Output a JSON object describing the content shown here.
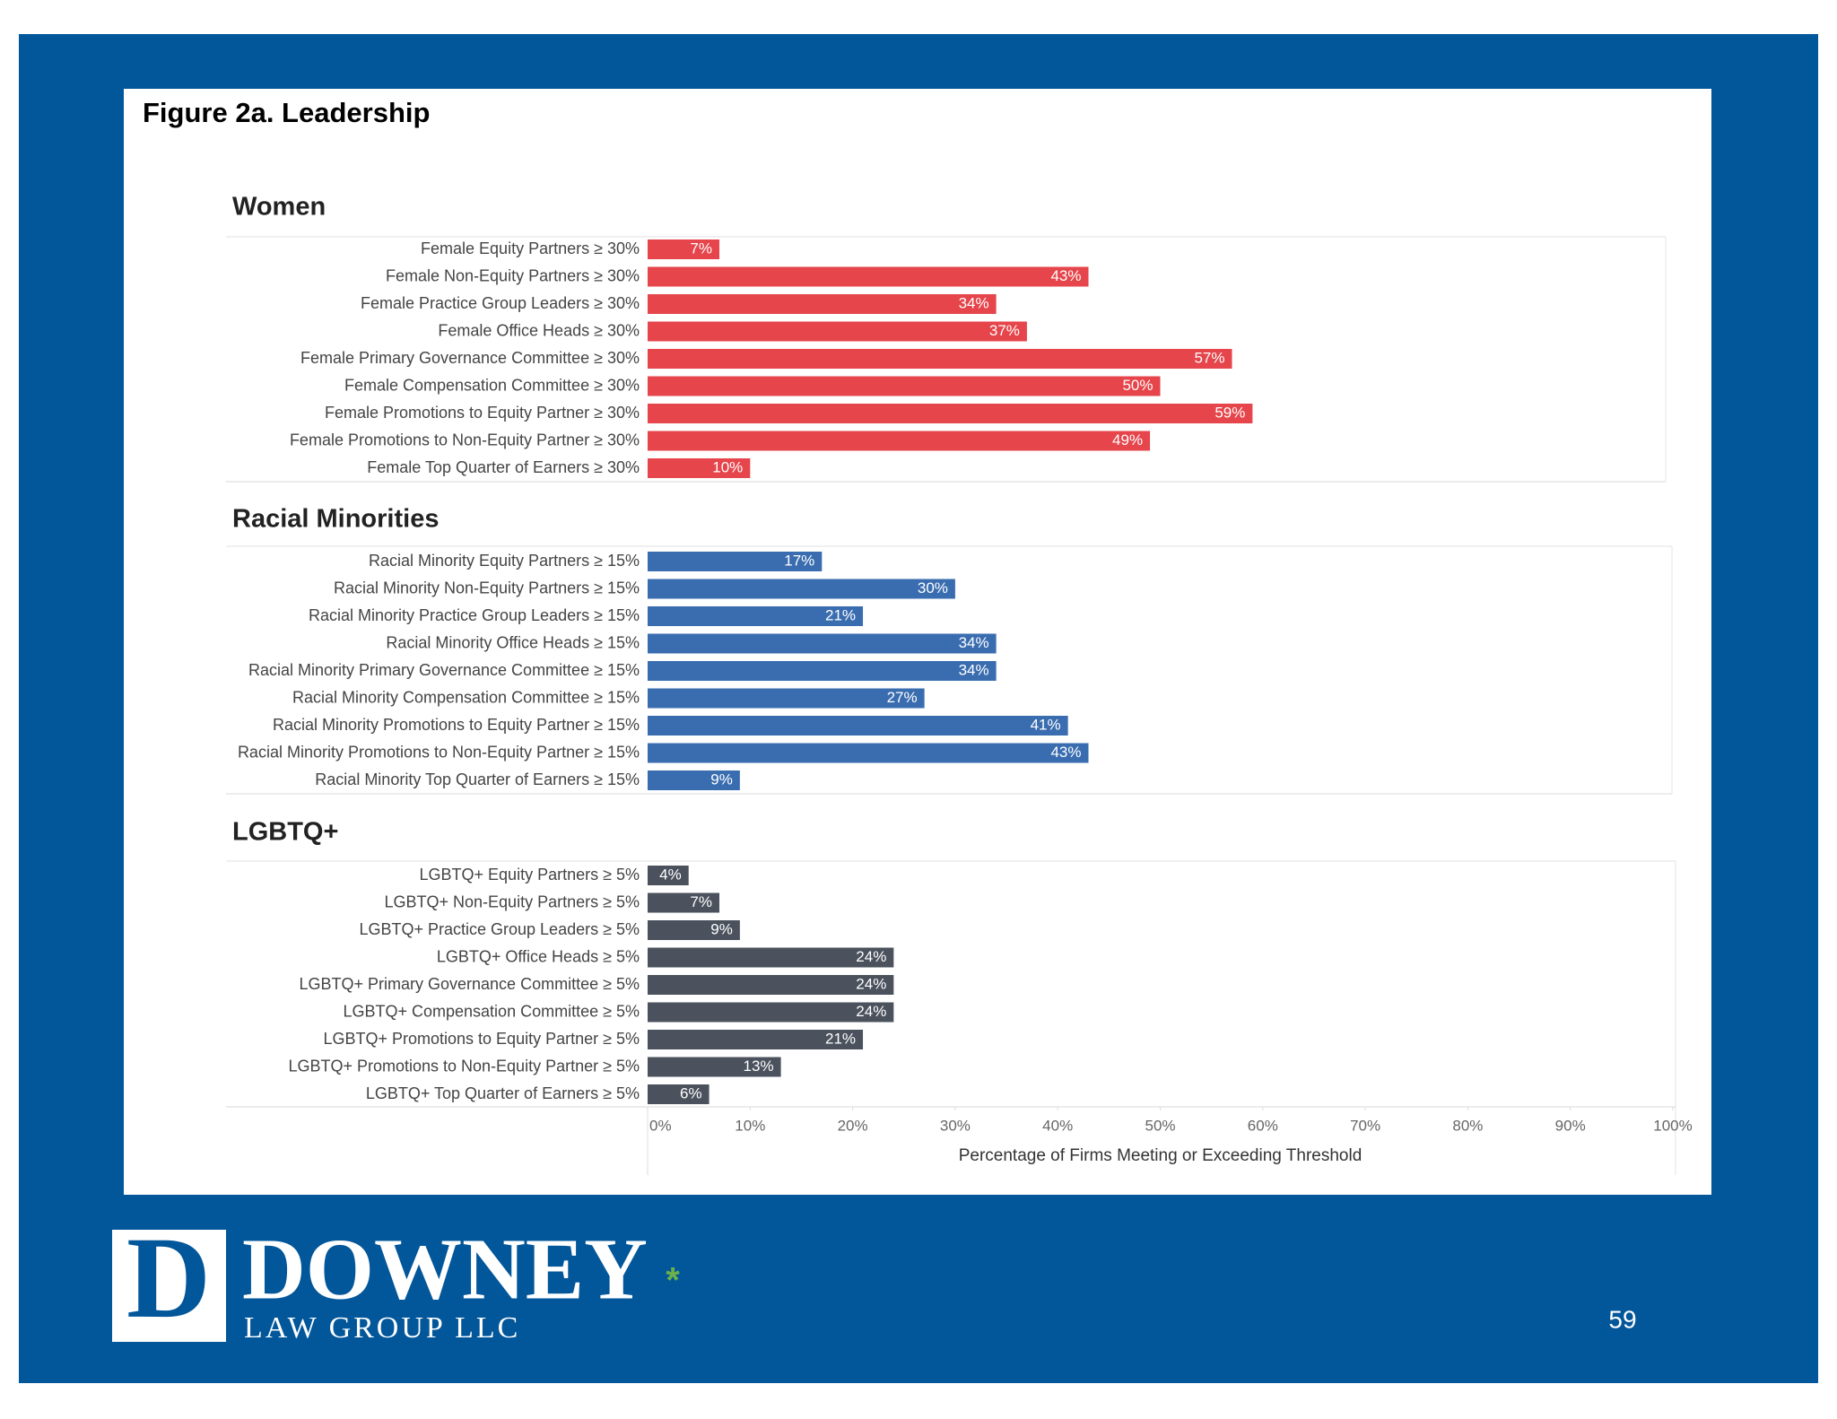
{
  "title": "Figure 2a. Leadership",
  "chart_data": [
    {
      "type": "bar",
      "orientation": "horizontal",
      "title": "Women",
      "color": "#e5454b",
      "categories": [
        "Female Equity Partners ≥ 30%",
        "Female Non-Equity Partners ≥ 30%",
        "Female Practice Group Leaders ≥ 30%",
        "Female Office Heads ≥ 30%",
        "Female Primary Governance Committee ≥ 30%",
        "Female Compensation Committee ≥ 30%",
        "Female Promotions to Equity Partner ≥ 30%",
        "Female Promotions to Non-Equity Partner ≥ 30%",
        "Female Top Quarter of Earners ≥ 30%"
      ],
      "values": [
        7,
        43,
        34,
        37,
        57,
        50,
        59,
        49,
        10
      ],
      "value_labels": [
        "7%",
        "43%",
        "34%",
        "37%",
        "57%",
        "50%",
        "59%",
        "49%",
        "10%"
      ],
      "xlim": [
        0,
        100
      ]
    },
    {
      "type": "bar",
      "orientation": "horizontal",
      "title": "Racial Minorities",
      "color": "#3a6db0",
      "categories": [
        "Racial Minority Equity Partners ≥ 15%",
        "Racial Minority Non-Equity Partners ≥ 15%",
        "Racial Minority Practice Group Leaders ≥ 15%",
        "Racial Minority Office Heads ≥ 15%",
        "Racial Minority Primary Governance Committee ≥ 15%",
        "Racial Minority Compensation Committee ≥ 15%",
        "Racial Minority Promotions to Equity Partner ≥ 15%",
        "Racial Minority Promotions to Non-Equity Partner ≥ 15%",
        "Racial Minority Top Quarter of Earners ≥ 15%"
      ],
      "values": [
        17,
        30,
        21,
        34,
        34,
        27,
        41,
        43,
        9
      ],
      "value_labels": [
        "17%",
        "30%",
        "21%",
        "34%",
        "34%",
        "27%",
        "41%",
        "43%",
        "9%"
      ],
      "xlim": [
        0,
        100
      ]
    },
    {
      "type": "bar",
      "orientation": "horizontal",
      "title": "LGBTQ+",
      "color": "#4b525d",
      "categories": [
        "LGBTQ+ Equity Partners ≥ 5%",
        "LGBTQ+ Non-Equity Partners ≥ 5%",
        "LGBTQ+ Practice Group Leaders ≥ 5%",
        "LGBTQ+ Office Heads ≥ 5%",
        "LGBTQ+ Primary Governance Committee ≥ 5%",
        "LGBTQ+ Compensation Committee ≥ 5%",
        "LGBTQ+ Promotions to Equity Partner ≥ 5%",
        "LGBTQ+ Promotions to Non-Equity Partner ≥ 5%",
        "LGBTQ+ Top Quarter of Earners ≥ 5%"
      ],
      "values": [
        4,
        7,
        9,
        24,
        24,
        24,
        21,
        13,
        6
      ],
      "value_labels": [
        "4%",
        "7%",
        "9%",
        "24%",
        "24%",
        "24%",
        "21%",
        "13%",
        "6%"
      ],
      "xlim": [
        0,
        100
      ],
      "x_label": "Percentage of Firms Meeting or Exceeding Threshold",
      "xticks": [
        {
          "value": 0,
          "label": "0%"
        },
        {
          "value": 10,
          "label": "10%"
        },
        {
          "value": 20,
          "label": "20%"
        },
        {
          "value": 30,
          "label": "30%"
        },
        {
          "value": 40,
          "label": "40%"
        },
        {
          "value": 50,
          "label": "50%"
        },
        {
          "value": 60,
          "label": "60%"
        },
        {
          "value": 70,
          "label": "70%"
        },
        {
          "value": 80,
          "label": "80%"
        },
        {
          "value": 90,
          "label": "90%"
        },
        {
          "value": 100,
          "label": "100%"
        }
      ]
    }
  ],
  "footer": {
    "logo_letter": "D",
    "company": "DOWNEY",
    "company_sub": "LAW GROUP LLC",
    "mark": "*",
    "page_number": "59"
  }
}
